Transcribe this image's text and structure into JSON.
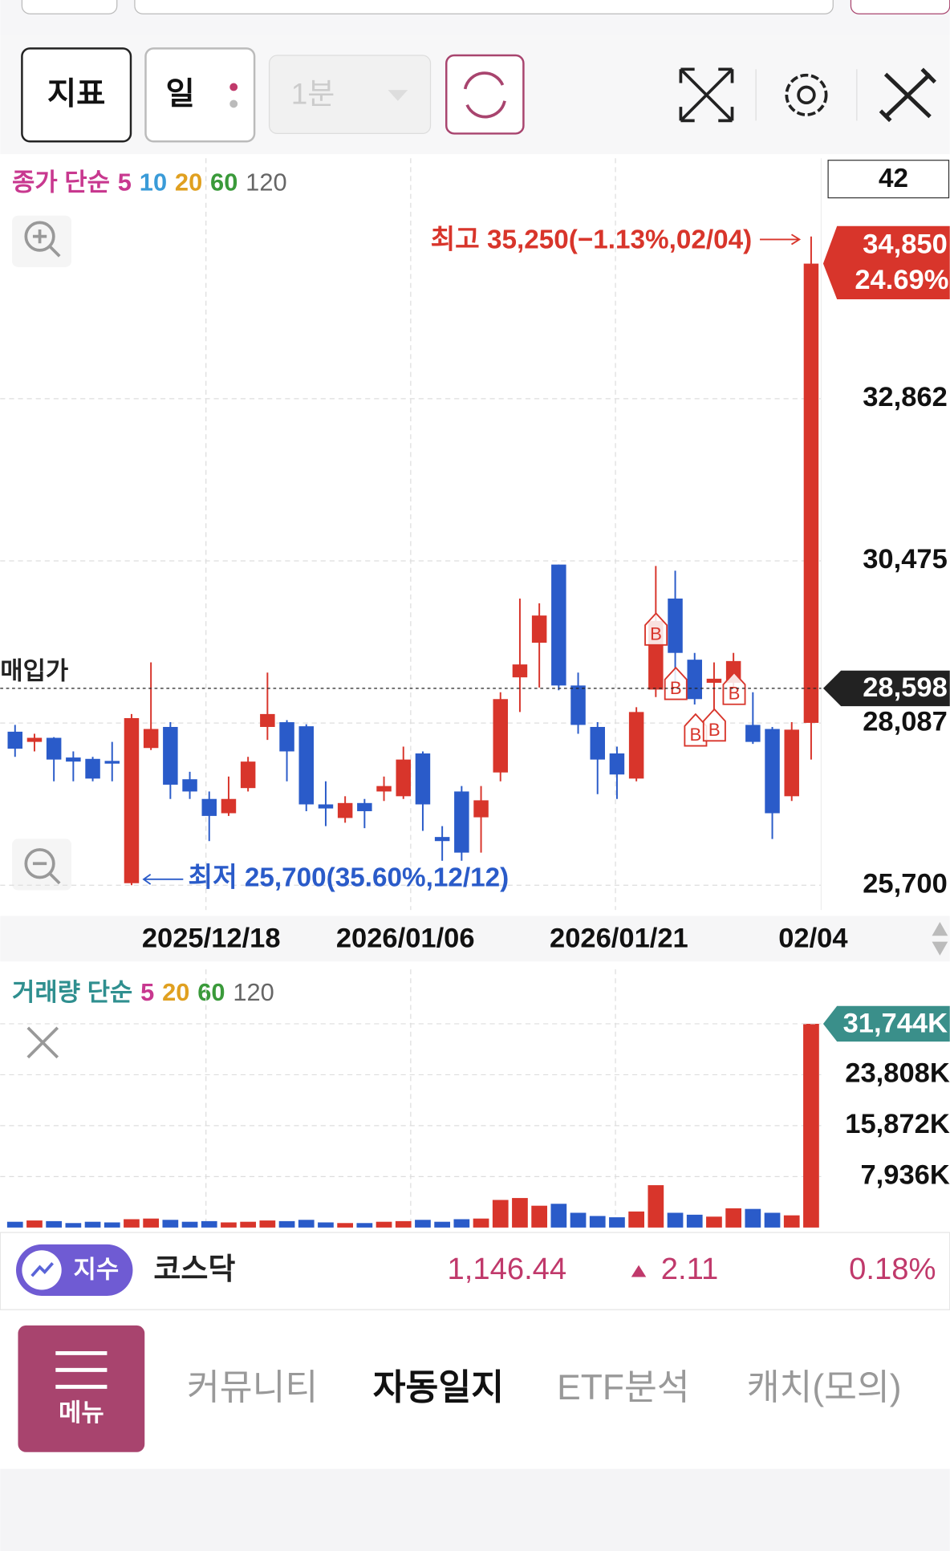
{
  "toolbar": {
    "indicator": "지표",
    "period": "일",
    "interval": "1분"
  },
  "chart_data": [
    {
      "type": "candlestick",
      "ma_legend": {
        "prefix": "종가 단순",
        "items": [
          {
            "name": "5",
            "color": "#c8388f"
          },
          {
            "name": "10",
            "color": "#3a9bd8"
          },
          {
            "name": "20",
            "color": "#e0a020"
          },
          {
            "name": "60",
            "color": "#3a9a3a"
          },
          {
            "name": "120",
            "color": "#666666"
          }
        ]
      },
      "count_label": "42",
      "categories": [
        null,
        null,
        null,
        null,
        null,
        null,
        null,
        null,
        null,
        null,
        "2025/12/18",
        null,
        null,
        null,
        null,
        null,
        null,
        null,
        null,
        null,
        "2026/01/06",
        null,
        null,
        null,
        null,
        null,
        null,
        null,
        null,
        null,
        null,
        "2026/01/21",
        null,
        null,
        null,
        null,
        null,
        null,
        null,
        null,
        null,
        "02/04"
      ],
      "open": [
        27960,
        27810,
        27870,
        27580,
        27560,
        27530,
        25730,
        27720,
        28030,
        27260,
        26970,
        26760,
        27130,
        28030,
        28100,
        28040,
        26890,
        26690,
        26910,
        27080,
        27010,
        27640,
        26410,
        27080,
        26700,
        27360,
        28760,
        29270,
        30420,
        28640,
        28030,
        27640,
        27270,
        28580,
        29920,
        29020,
        28680,
        28680,
        28060,
        28000,
        27010,
        28090
      ],
      "high": [
        28060,
        27930,
        27880,
        27670,
        27590,
        27810,
        28220,
        28980,
        28100,
        27370,
        27080,
        27300,
        27590,
        28830,
        28130,
        28070,
        27230,
        27010,
        26970,
        27300,
        27740,
        27670,
        26570,
        27160,
        27160,
        28540,
        29920,
        29850,
        30420,
        28830,
        28100,
        27740,
        28320,
        30400,
        30330,
        29120,
        28980,
        29120,
        28540,
        28030,
        28100,
        35250
      ],
      "low": [
        27590,
        27670,
        27230,
        27230,
        27230,
        27230,
        25700,
        27690,
        26970,
        26970,
        26350,
        26720,
        27080,
        27840,
        27230,
        26790,
        26570,
        26620,
        26540,
        26940,
        26970,
        26500,
        26060,
        26060,
        26180,
        27230,
        28250,
        28610,
        28570,
        27930,
        27040,
        26970,
        27230,
        28470,
        28680,
        28360,
        28250,
        28610,
        27780,
        26380,
        26940,
        27550
      ],
      "close": [
        27710,
        27870,
        27550,
        27520,
        27270,
        27490,
        28160,
        28000,
        27180,
        27080,
        26720,
        26970,
        27520,
        28220,
        27670,
        26890,
        26830,
        26910,
        26790,
        27160,
        27550,
        26890,
        26350,
        26180,
        26950,
        28440,
        28950,
        29670,
        28640,
        28060,
        27550,
        27330,
        28250,
        29590,
        29120,
        28440,
        28740,
        29000,
        27810,
        26760,
        27990,
        34850
      ],
      "up_color": "#d8352b",
      "down_color": "#2a5bc9",
      "ylim": [
        25335,
        36401
      ],
      "yticks": [
        {
          "value": 25700,
          "label": "25,700"
        },
        {
          "value": 28087,
          "label": "28,087"
        },
        {
          "value": 30475,
          "label": "30,475"
        },
        {
          "value": 32862,
          "label": "32,862"
        }
      ],
      "grid": true,
      "current_label": {
        "value": 34850,
        "label": "34,850"
      },
      "change_label": "24.69%",
      "purchase": {
        "name": "매입가",
        "value": 28598,
        "label": "28,598"
      },
      "high_annotation": "최고 35,250(−1.13%,02/04)",
      "low_annotation": "최저 25,700(35.60%,12/12)"
    },
    {
      "type": "bar",
      "ma_legend": {
        "prefix": "거래량 단순",
        "items": [
          {
            "name": "5",
            "color": "#c8388f"
          },
          {
            "name": "20",
            "color": "#e0a020"
          },
          {
            "name": "60",
            "color": "#3a9a3a"
          },
          {
            "name": "120",
            "color": "#666666"
          }
        ]
      },
      "values": [
        900,
        1100,
        1000,
        700,
        900,
        800,
        1300,
        1400,
        1200,
        900,
        1000,
        800,
        900,
        1100,
        1000,
        1200,
        800,
        700,
        700,
        900,
        1000,
        1200,
        900,
        1300,
        1400,
        4300,
        4600,
        3400,
        3700,
        2300,
        1800,
        1600,
        2500,
        6600,
        2300,
        2000,
        1700,
        3000,
        2900,
        2300,
        1900,
        31744
      ],
      "ylim": [
        0,
        37140
      ],
      "yticks": [
        {
          "value": 7936,
          "label": "7,936K"
        },
        {
          "value": 15872,
          "label": "15,872K"
        },
        {
          "value": 23808,
          "label": "23,808K"
        }
      ],
      "current_label": {
        "value": 31744,
        "label": "31,744K"
      },
      "grid": true
    }
  ],
  "index_bar": {
    "badge": "지수",
    "name": "코스닥",
    "value": "1,146.44",
    "change": "2.11",
    "change_pct": "0.18%"
  },
  "nav": {
    "menu": "메뉴",
    "items": [
      "커뮤니티",
      "자동일지",
      "ETF분석",
      "캐치(모의)"
    ]
  }
}
